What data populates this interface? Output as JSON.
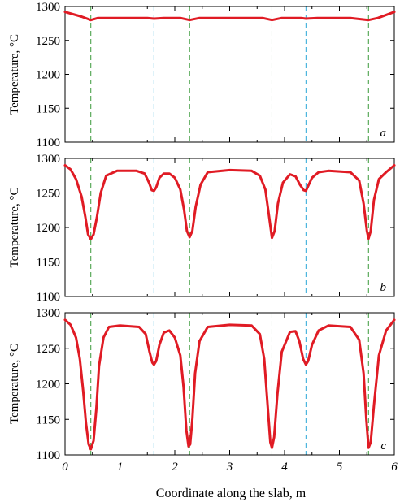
{
  "figure": {
    "xlabel": "Coordinate along the slab, m"
  },
  "chart_data": [
    {
      "type": "line",
      "panel_label": "a",
      "ylabel": "Temperature, °C",
      "xlim": [
        0,
        6
      ],
      "ylim": [
        1100,
        1300
      ],
      "yticks": [
        1100,
        1150,
        1200,
        1250,
        1300
      ],
      "xticks": [
        0,
        1,
        2,
        3,
        4,
        5,
        6
      ],
      "x_tick_labels_shown": false,
      "vlines": [
        {
          "x": 0.47,
          "color": "#3a9a3a"
        },
        {
          "x": 1.62,
          "color": "#2aa7d8"
        },
        {
          "x": 2.27,
          "color": "#3a9a3a"
        },
        {
          "x": 3.77,
          "color": "#3a9a3a"
        },
        {
          "x": 4.39,
          "color": "#2aa7d8"
        },
        {
          "x": 5.53,
          "color": "#3a9a3a"
        }
      ],
      "series": [
        {
          "color": "#e01b24",
          "x": [
            0,
            0.3,
            0.47,
            0.6,
            1.0,
            1.5,
            1.62,
            1.8,
            2.1,
            2.27,
            2.45,
            3.0,
            3.6,
            3.77,
            3.95,
            4.3,
            4.39,
            4.6,
            5.2,
            5.53,
            5.7,
            6.0
          ],
          "y": [
            1292,
            1285,
            1280,
            1283,
            1283,
            1283,
            1282,
            1283,
            1283,
            1280,
            1283,
            1283,
            1283,
            1280,
            1283,
            1283,
            1282,
            1283,
            1283,
            1280,
            1283,
            1292
          ]
        }
      ]
    },
    {
      "type": "line",
      "panel_label": "b",
      "ylabel": "Temperature, °C",
      "xlim": [
        0,
        6
      ],
      "ylim": [
        1100,
        1300
      ],
      "yticks": [
        1100,
        1150,
        1200,
        1250,
        1300
      ],
      "xticks": [
        0,
        1,
        2,
        3,
        4,
        5,
        6
      ],
      "x_tick_labels_shown": false,
      "vlines": [
        {
          "x": 0.47,
          "color": "#3a9a3a"
        },
        {
          "x": 1.62,
          "color": "#2aa7d8"
        },
        {
          "x": 2.27,
          "color": "#3a9a3a"
        },
        {
          "x": 3.77,
          "color": "#3a9a3a"
        },
        {
          "x": 4.39,
          "color": "#2aa7d8"
        },
        {
          "x": 5.53,
          "color": "#3a9a3a"
        }
      ],
      "series": [
        {
          "color": "#e01b24",
          "x": [
            0,
            0.1,
            0.2,
            0.3,
            0.37,
            0.42,
            0.47,
            0.52,
            0.58,
            0.65,
            0.75,
            0.95,
            1.3,
            1.45,
            1.53,
            1.58,
            1.62,
            1.66,
            1.72,
            1.8,
            1.9,
            2.0,
            2.1,
            2.17,
            2.22,
            2.27,
            2.32,
            2.38,
            2.47,
            2.6,
            3.0,
            3.4,
            3.55,
            3.65,
            3.72,
            3.77,
            3.82,
            3.88,
            3.97,
            4.1,
            4.2,
            4.28,
            4.35,
            4.39,
            4.43,
            4.5,
            4.62,
            4.8,
            5.2,
            5.36,
            5.44,
            5.5,
            5.53,
            5.57,
            5.63,
            5.72,
            5.85,
            6.0
          ],
          "y": [
            1290,
            1284,
            1270,
            1245,
            1215,
            1190,
            1183,
            1190,
            1215,
            1250,
            1275,
            1282,
            1282,
            1278,
            1265,
            1254,
            1253,
            1258,
            1272,
            1278,
            1278,
            1272,
            1255,
            1225,
            1195,
            1186,
            1195,
            1230,
            1262,
            1280,
            1283,
            1282,
            1275,
            1255,
            1215,
            1185,
            1195,
            1235,
            1265,
            1277,
            1274,
            1262,
            1254,
            1253,
            1260,
            1272,
            1280,
            1282,
            1280,
            1268,
            1235,
            1195,
            1184,
            1195,
            1240,
            1270,
            1280,
            1290
          ]
        }
      ]
    },
    {
      "type": "line",
      "panel_label": "c",
      "ylabel": "Temperature, °C",
      "xlim": [
        0,
        6
      ],
      "ylim": [
        1100,
        1300
      ],
      "yticks": [
        1100,
        1150,
        1200,
        1250,
        1300
      ],
      "xticks": [
        0,
        1,
        2,
        3,
        4,
        5,
        6
      ],
      "x_tick_labels_shown": true,
      "x_tick_labels": [
        "0",
        "1",
        "2",
        "3",
        "4",
        "5",
        "6"
      ],
      "vlines": [
        {
          "x": 0.47,
          "color": "#3a9a3a"
        },
        {
          "x": 1.62,
          "color": "#2aa7d8"
        },
        {
          "x": 2.27,
          "color": "#3a9a3a"
        },
        {
          "x": 3.77,
          "color": "#3a9a3a"
        },
        {
          "x": 4.39,
          "color": "#2aa7d8"
        },
        {
          "x": 5.53,
          "color": "#3a9a3a"
        }
      ],
      "series": [
        {
          "color": "#e01b24",
          "x": [
            0,
            0.1,
            0.2,
            0.27,
            0.33,
            0.38,
            0.43,
            0.47,
            0.52,
            0.57,
            0.62,
            0.7,
            0.8,
            1.0,
            1.35,
            1.47,
            1.54,
            1.59,
            1.62,
            1.66,
            1.72,
            1.8,
            1.9,
            2.0,
            2.1,
            2.16,
            2.21,
            2.25,
            2.28,
            2.32,
            2.37,
            2.45,
            2.6,
            3.0,
            3.4,
            3.55,
            3.63,
            3.7,
            3.74,
            3.77,
            3.81,
            3.87,
            3.95,
            4.1,
            4.2,
            4.27,
            4.34,
            4.39,
            4.43,
            4.5,
            4.62,
            4.8,
            5.2,
            5.36,
            5.44,
            5.49,
            5.53,
            5.57,
            5.63,
            5.72,
            5.85,
            6.0
          ],
          "y": [
            1290,
            1283,
            1265,
            1235,
            1190,
            1145,
            1115,
            1108,
            1120,
            1165,
            1225,
            1265,
            1280,
            1282,
            1280,
            1270,
            1245,
            1230,
            1227,
            1232,
            1255,
            1272,
            1275,
            1265,
            1240,
            1195,
            1135,
            1112,
            1115,
            1150,
            1215,
            1260,
            1280,
            1283,
            1282,
            1270,
            1235,
            1160,
            1118,
            1110,
            1125,
            1185,
            1245,
            1273,
            1274,
            1260,
            1235,
            1227,
            1232,
            1255,
            1275,
            1282,
            1280,
            1262,
            1215,
            1150,
            1110,
            1118,
            1170,
            1240,
            1275,
            1290
          ]
        }
      ]
    }
  ]
}
